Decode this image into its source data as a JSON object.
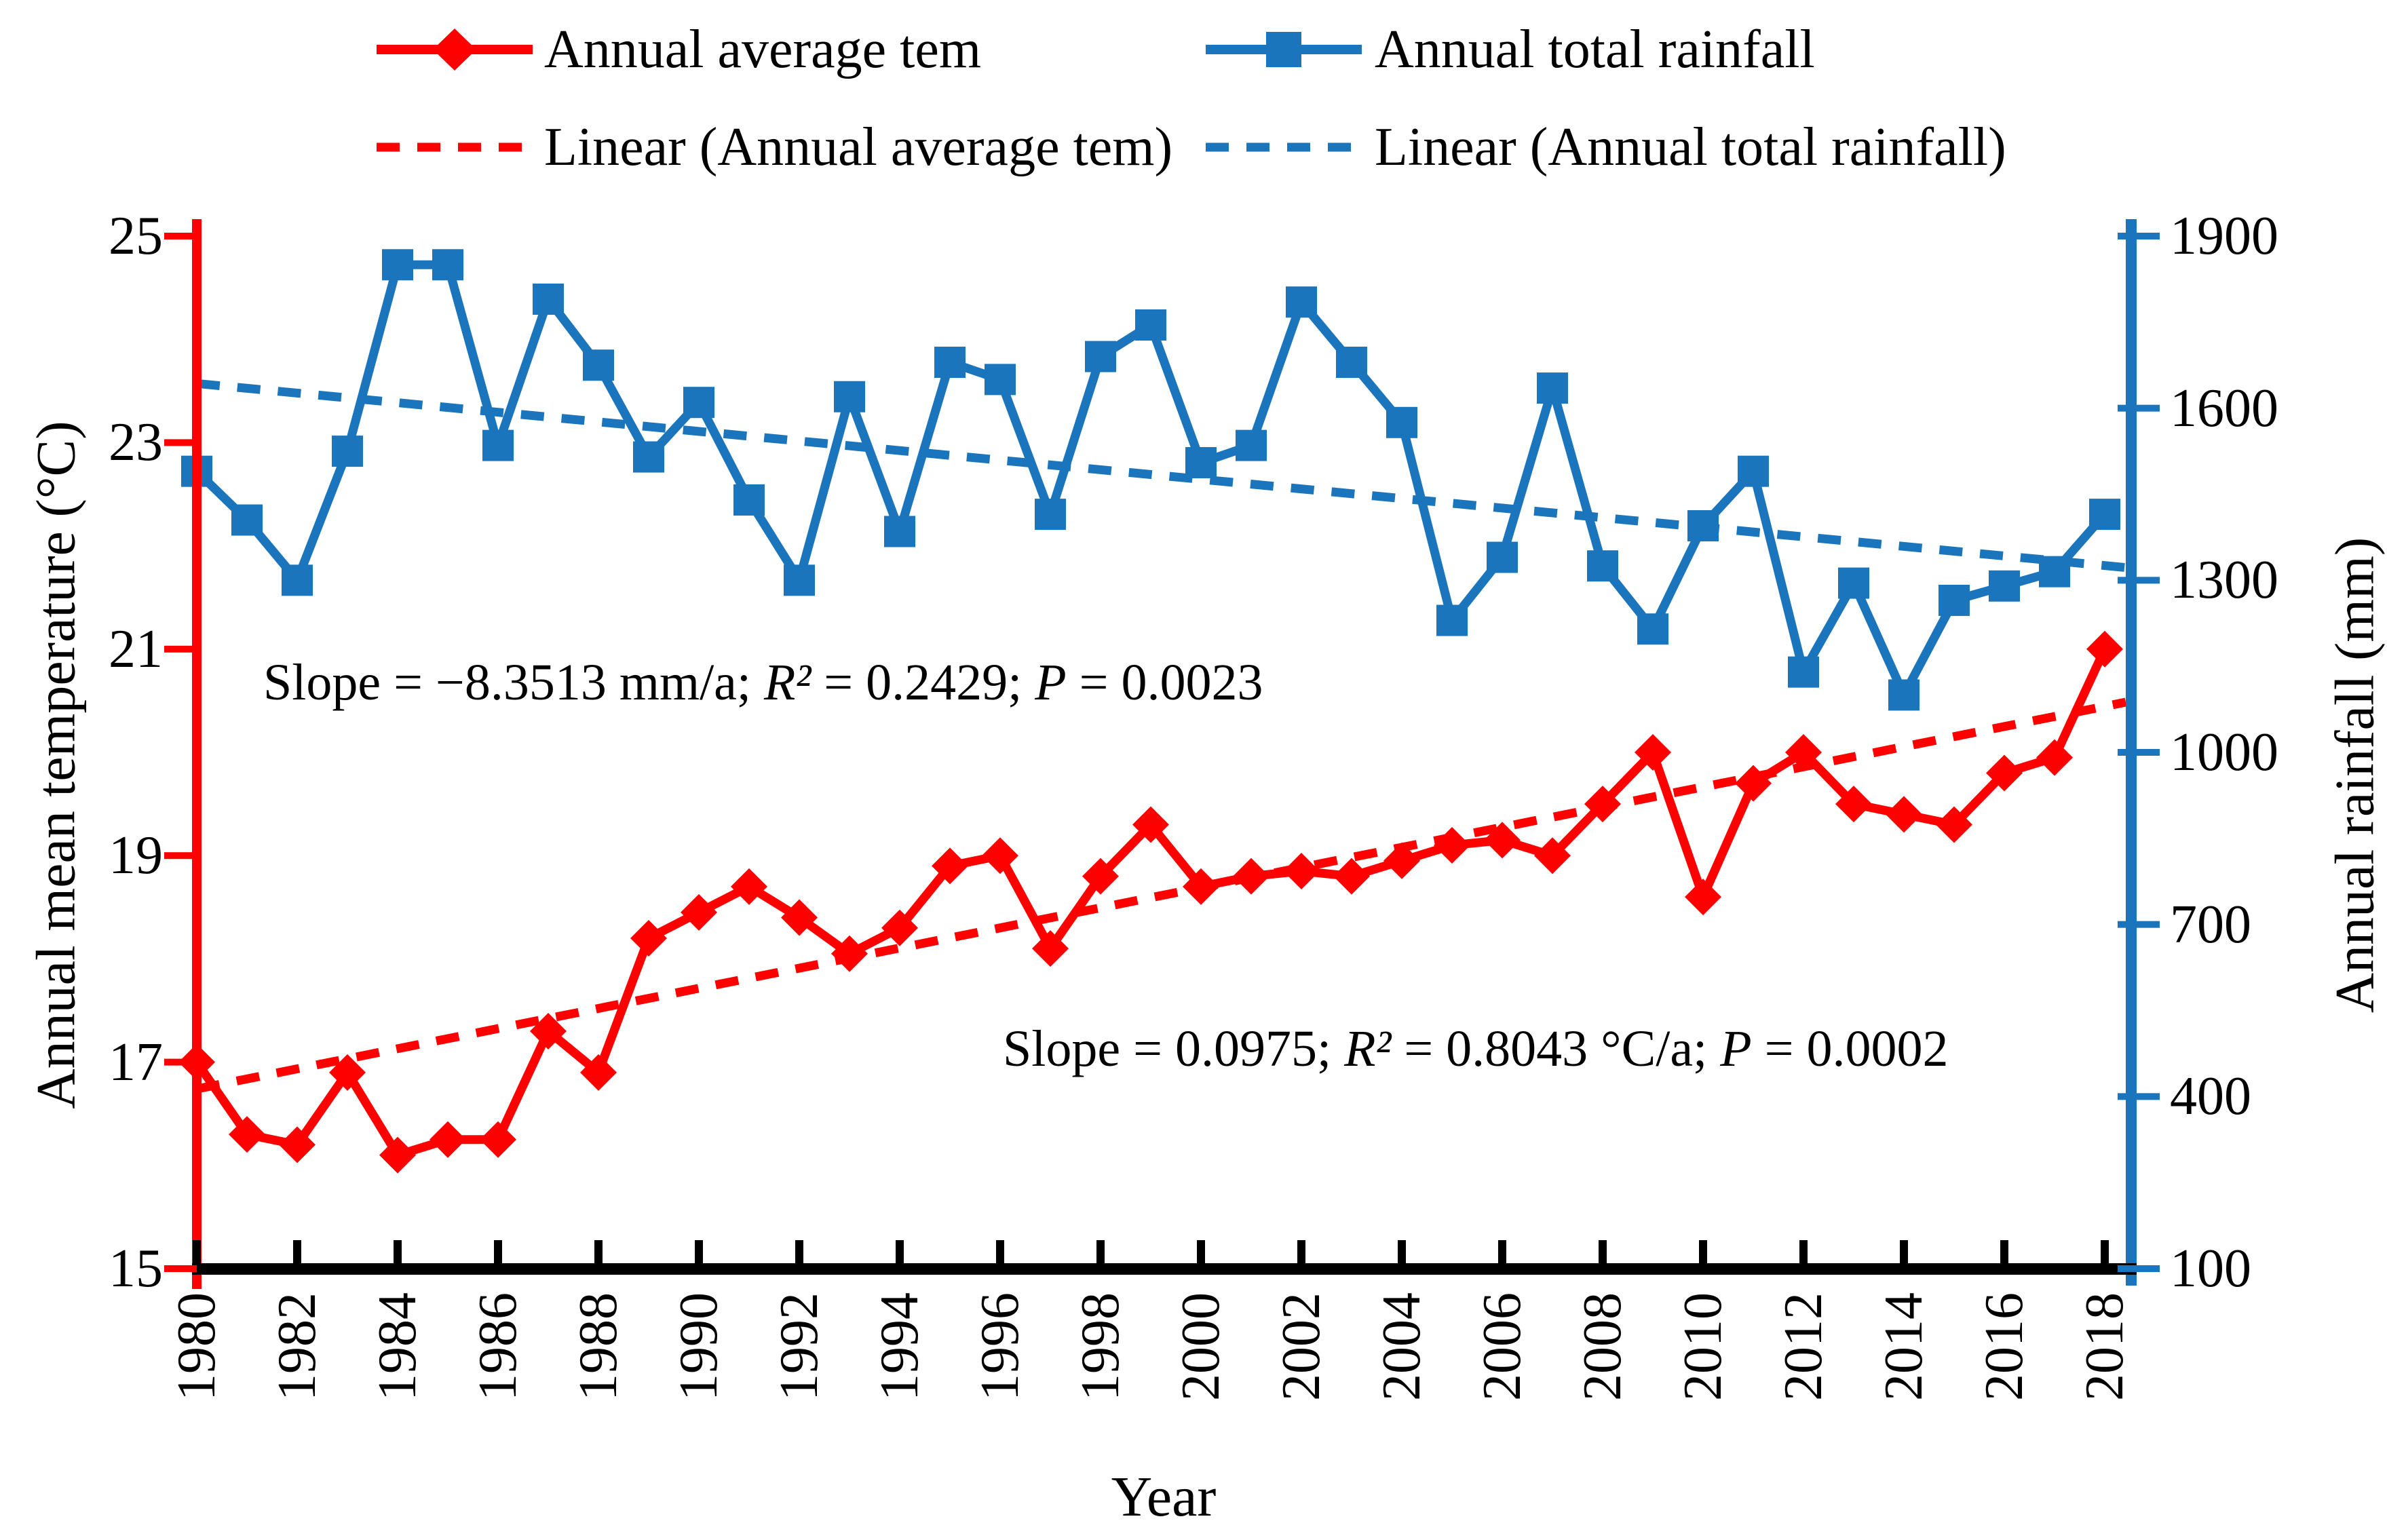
{
  "colors": {
    "temperature": "#FF0000",
    "rainfall": "#1B75BC",
    "axis_black": "#000000",
    "background": "#FFFFFF"
  },
  "legend": {
    "items": [
      {
        "label": "Annual average tem",
        "swatch": "line-diamond",
        "color": "#FF0000"
      },
      {
        "label": "Annual total rainfall",
        "swatch": "line-square",
        "color": "#1B75BC"
      },
      {
        "label": "Linear (Annual average tem)",
        "swatch": "dash",
        "color": "#FF0000"
      },
      {
        "label": "Linear (Annual total rainfall)",
        "swatch": "dash",
        "color": "#1B75BC"
      }
    ]
  },
  "chart_data": {
    "type": "line",
    "title": "",
    "xlabel": "Year",
    "x": [
      1980,
      1981,
      1982,
      1983,
      1984,
      1985,
      1986,
      1987,
      1988,
      1989,
      1990,
      1991,
      1992,
      1993,
      1994,
      1995,
      1996,
      1997,
      1998,
      1999,
      2000,
      2001,
      2002,
      2003,
      2004,
      2005,
      2006,
      2007,
      2008,
      2009,
      2010,
      2011,
      2012,
      2013,
      2014,
      2015,
      2016,
      2017,
      2018
    ],
    "x_ticks": [
      1980,
      1982,
      1984,
      1986,
      1988,
      1990,
      1992,
      1994,
      1996,
      1998,
      2000,
      2002,
      2004,
      2006,
      2008,
      2010,
      2012,
      2014,
      2016,
      2018
    ],
    "series": [
      {
        "name": "Annual average tem",
        "axis": "left",
        "color": "#FF0000",
        "marker": "diamond",
        "values": [
          17.0,
          16.3,
          16.2,
          16.9,
          16.1,
          16.25,
          16.25,
          17.3,
          16.9,
          18.2,
          18.45,
          18.7,
          18.4,
          18.05,
          18.3,
          18.9,
          19.0,
          18.1,
          18.8,
          19.3,
          18.7,
          18.8,
          18.85,
          18.8,
          18.95,
          19.1,
          19.15,
          19.0,
          19.5,
          20.0,
          18.6,
          19.7,
          20.0,
          19.5,
          19.4,
          19.3,
          19.8,
          19.95,
          21.0
        ]
      },
      {
        "name": "Annual total rainfall",
        "axis": "right",
        "color": "#1B75BC",
        "marker": "square",
        "values": [
          1490,
          1405,
          1300,
          1525,
          1850,
          1850,
          1535,
          1790,
          1675,
          1515,
          1610,
          1440,
          1300,
          1620,
          1385,
          1680,
          1650,
          1415,
          1690,
          1745,
          1505,
          1535,
          1785,
          1680,
          1575,
          1230,
          1340,
          1635,
          1325,
          1215,
          1395,
          1490,
          1140,
          1295,
          1100,
          1265,
          1290,
          1315,
          1415
        ]
      }
    ],
    "trend_lines": [
      {
        "name": "Linear (Annual average tem)",
        "axis": "left",
        "color": "#FF0000",
        "value_1980": 16.74,
        "slope_per_year": 0.0975
      },
      {
        "name": "Linear (Annual total rainfall)",
        "axis": "right",
        "color": "#1B75BC",
        "value_1980": 1643,
        "slope_per_year": -8.3513
      }
    ],
    "y_left": {
      "label": "Annual mean temperature (°C)",
      "min": 15,
      "max": 25,
      "ticks": [
        15,
        17,
        19,
        21,
        23,
        25
      ],
      "color": "#FF0000"
    },
    "y_right": {
      "label": "Annual rainfall (mm)",
      "min": 100,
      "max": 1900,
      "ticks": [
        100,
        400,
        700,
        1000,
        1300,
        1600,
        1900
      ],
      "color": "#1B75BC"
    },
    "grid": false,
    "legend_position": "top",
    "annotations": [
      {
        "id": "rainfall-stats",
        "text": "Slope = −8.3513 mm/a; R² = 0.2429; P = 0.0023"
      },
      {
        "id": "temperature-stats",
        "text": "Slope = 0.0975; R² = 0.8043 °C/a; P = 0.0002"
      }
    ]
  }
}
